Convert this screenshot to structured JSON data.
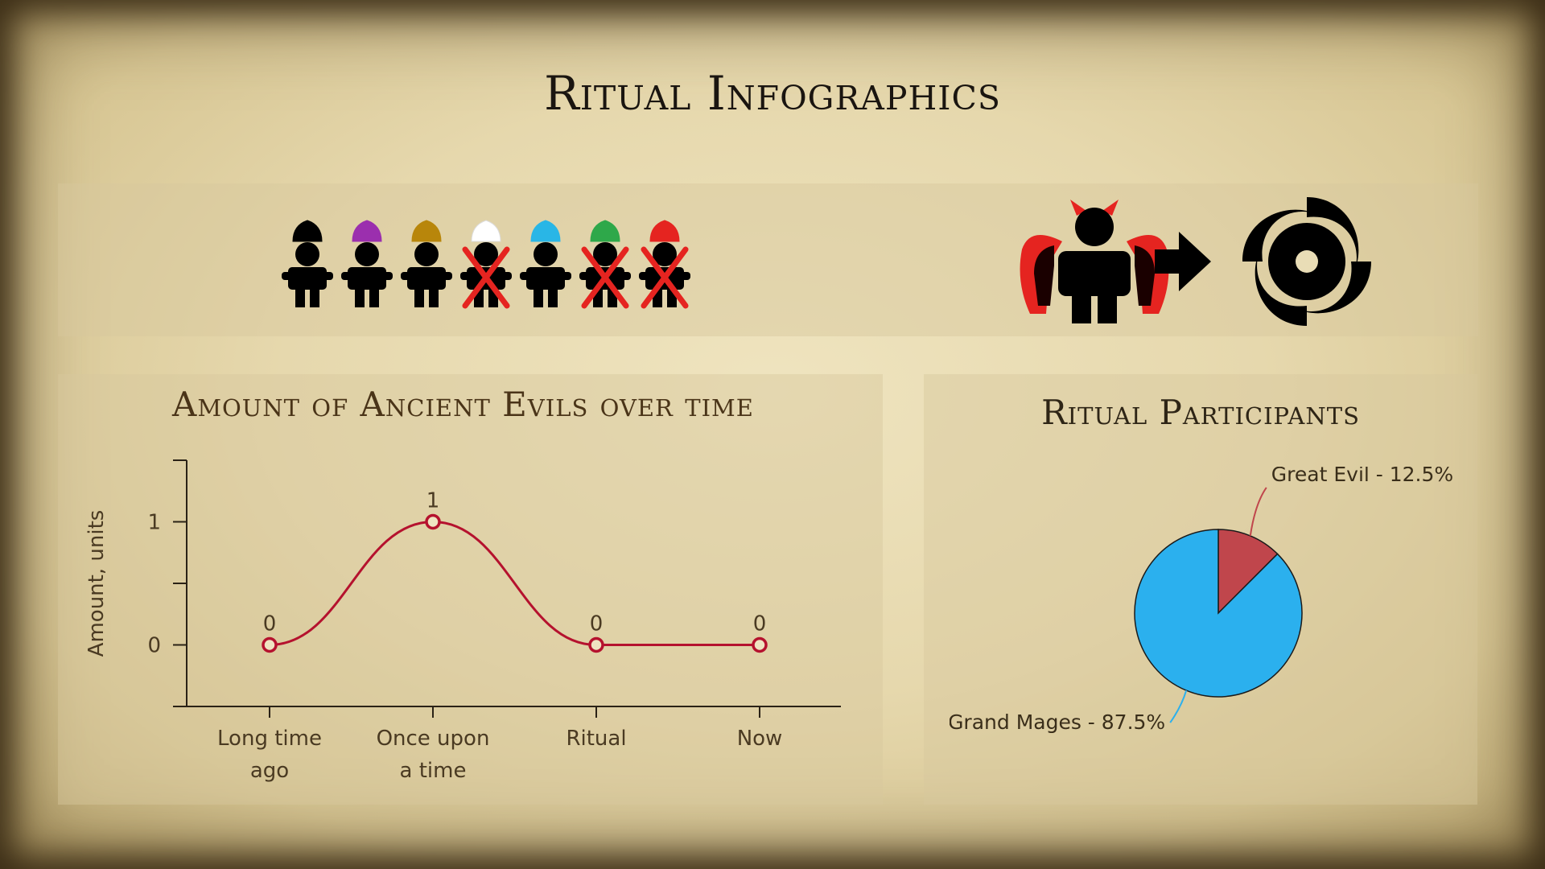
{
  "title": "Ritual Infographics",
  "participants_row": {
    "hat_colors": [
      "#000000",
      "#9b2fae",
      "#b8860b",
      "#ffffff",
      "#29b6e6",
      "#2ea84a",
      "#e52420"
    ],
    "crossed_out": [
      false,
      false,
      false,
      true,
      false,
      true,
      true
    ],
    "person_icon": "person-icon",
    "cross_icon": "red-x-icon"
  },
  "transformation": {
    "demon_icon": "demon-icon",
    "arrow_icon": "arrow-right-icon",
    "vortex_icon": "black-hole-icon",
    "accent": "#e52420"
  },
  "chart_data": [
    {
      "type": "line",
      "title": "Amount of Ancient Evils over time",
      "ylabel": "Amount, units",
      "xlabel": "",
      "categories": [
        "Long time ago",
        "Once upon a time",
        "Ritual",
        "Now"
      ],
      "values": [
        0,
        1,
        0,
        0
      ],
      "data_labels": [
        "0",
        "1",
        "0",
        "0"
      ],
      "yticks": [
        "0",
        "1"
      ],
      "ylim": [
        -0.5,
        1.5
      ],
      "smooth": true,
      "color": "#b5122e",
      "grid": false
    },
    {
      "type": "pie",
      "title": "Ritual Participants",
      "slices": [
        {
          "label": "Great Evil - 12.5%",
          "value": 12.5,
          "color": "#c0464c"
        },
        {
          "label": "Grand Mages - 87.5%",
          "value": 87.5,
          "color": "#2bb0ee"
        }
      ]
    }
  ]
}
